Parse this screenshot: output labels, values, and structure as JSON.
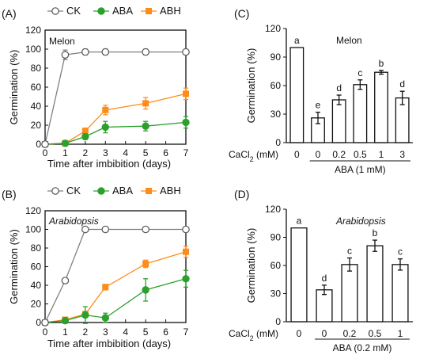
{
  "chart_data": [
    {
      "panel": "(A)",
      "type": "line",
      "annotation": "Melon",
      "xlabel": "Time after imbibition (days)",
      "ylabel": "Germination (%)",
      "ylim": [
        0,
        120
      ],
      "yticks": [
        0,
        20,
        40,
        60,
        80,
        100,
        120
      ],
      "xlim": [
        0,
        7
      ],
      "xticks": [
        0,
        1,
        2,
        3,
        4,
        5,
        6,
        7
      ],
      "legend": "top",
      "x": [
        0,
        1,
        2,
        3,
        5,
        7
      ],
      "series": [
        {
          "name": "CK",
          "color": "#808080",
          "marker": "open-circle",
          "values": [
            0,
            94,
            97,
            97,
            97,
            97
          ],
          "errors": [
            0,
            5,
            3,
            3,
            3,
            2
          ]
        },
        {
          "name": "ABA",
          "color": "#2ca02c",
          "marker": "filled-circle",
          "values": [
            0,
            1,
            8,
            18,
            19,
            23
          ],
          "errors": [
            0,
            2,
            3,
            6,
            5,
            6
          ]
        },
        {
          "name": "ABH",
          "color": "#ff8c1a",
          "marker": "filled-square",
          "values": [
            0,
            1,
            14,
            36,
            43,
            53
          ],
          "errors": [
            0,
            2,
            3,
            5,
            6,
            6
          ]
        }
      ]
    },
    {
      "panel": "(B)",
      "type": "line",
      "annotation": "Arabidopsis",
      "xlabel": "Time after imbibition (days)",
      "ylabel": "Germination (%)",
      "ylim": [
        0,
        120
      ],
      "yticks": [
        0,
        20,
        40,
        60,
        80,
        100,
        120
      ],
      "xlim": [
        0,
        7
      ],
      "xticks": [
        0,
        1,
        2,
        3,
        4,
        5,
        6,
        7
      ],
      "legend": "top",
      "x": [
        0,
        1,
        2,
        3,
        5,
        7
      ],
      "series": [
        {
          "name": "CK",
          "color": "#808080",
          "marker": "open-circle",
          "values": [
            0,
            45,
            100,
            100,
            100,
            100
          ],
          "errors": [
            0,
            2,
            0,
            0,
            0,
            0
          ]
        },
        {
          "name": "ABA",
          "color": "#2ca02c",
          "marker": "filled-circle",
          "values": [
            0,
            2,
            8,
            5,
            35,
            47
          ],
          "errors": [
            0,
            3,
            9,
            5,
            12,
            9
          ]
        },
        {
          "name": "ABH",
          "color": "#ff8c1a",
          "marker": "filled-square",
          "values": [
            0,
            3,
            9,
            38,
            63,
            76
          ],
          "errors": [
            0,
            2,
            3,
            3,
            4,
            6
          ]
        }
      ]
    },
    {
      "panel": "(C)",
      "type": "bar",
      "annotation": "Melon",
      "ylabel": "Germination (%)",
      "xlabel_prefix": "CaCl",
      "xlabel_sub": "2",
      "xlabel_suffix": " (mM)",
      "categories": [
        "0",
        "0",
        "0.2",
        "0.5",
        "1",
        "3"
      ],
      "values": [
        100,
        26,
        45,
        61,
        74,
        47
      ],
      "errors": [
        0,
        6,
        5,
        5,
        2,
        7
      ],
      "letters": [
        "a",
        "e",
        "d",
        "c",
        "b",
        "d"
      ],
      "group_label": "ABA (1 mM)",
      "ylim": [
        0,
        120
      ],
      "yticks": [
        0,
        30,
        60,
        90,
        120
      ]
    },
    {
      "panel": "(D)",
      "type": "bar",
      "annotation": "Arabidopsis",
      "ylabel": "Germination (%)",
      "xlabel_prefix": "CaCl",
      "xlabel_sub": "2",
      "xlabel_suffix": " (mM)",
      "categories": [
        "0",
        "0",
        "0.2",
        "0.5",
        "1"
      ],
      "values": [
        100,
        34,
        61,
        81,
        61
      ],
      "errors": [
        0,
        5,
        7,
        6,
        6
      ],
      "letters": [
        "a",
        "d",
        "c",
        "b",
        "c"
      ],
      "group_label": "ABA (0.2 mM)",
      "ylim": [
        0,
        120
      ],
      "yticks": [
        0,
        30,
        60,
        90,
        120
      ]
    }
  ]
}
